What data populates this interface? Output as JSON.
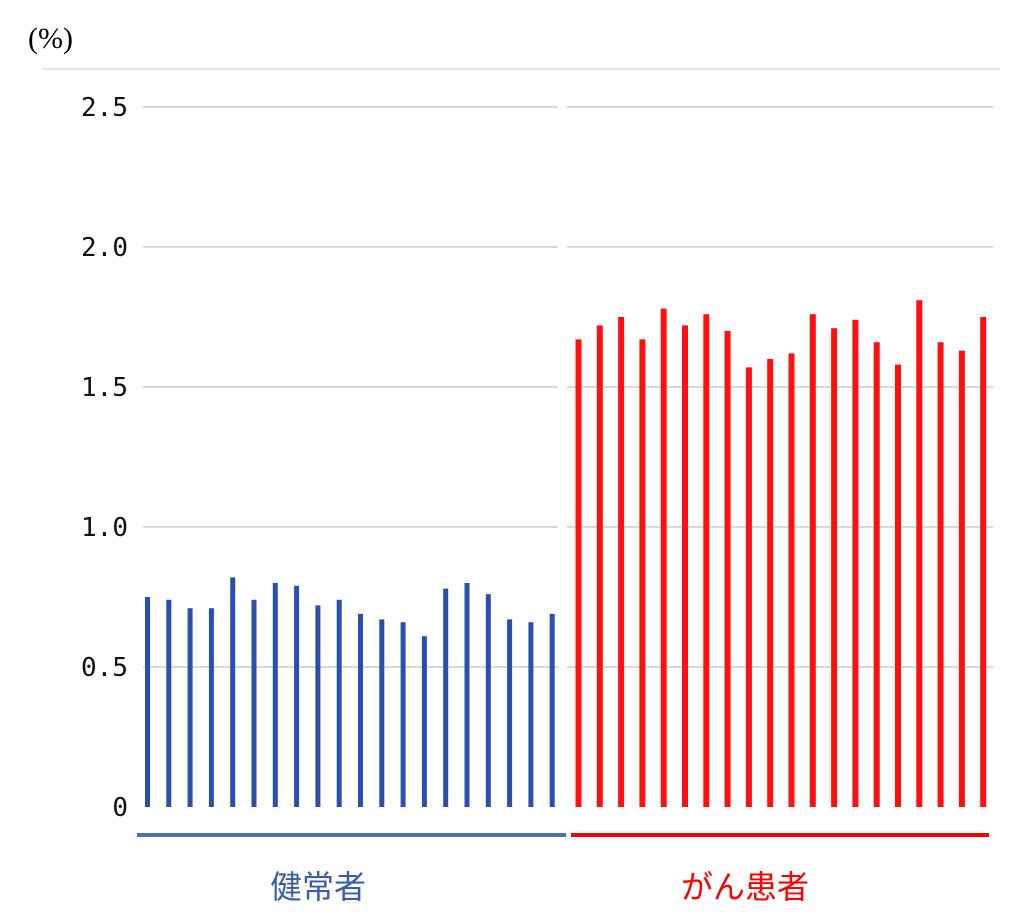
{
  "chart_data": {
    "type": "bar",
    "unit_label": "(%)",
    "title": "",
    "xlabel": "",
    "ylabel": "",
    "ylim": [
      0,
      2.5
    ],
    "yticks": [
      {
        "value": 0,
        "label": "0"
      },
      {
        "value": 0.5,
        "label": "0.5"
      },
      {
        "value": 1.0,
        "label": "1.0"
      },
      {
        "value": 1.5,
        "label": "1.5"
      },
      {
        "value": 2.0,
        "label": "2.0"
      },
      {
        "value": 2.5,
        "label": "2.5"
      }
    ],
    "grid": true,
    "legend": "none",
    "series": [
      {
        "name": "健常者",
        "color": "#2a4fb0",
        "underline_color": "#4a6fc4",
        "values": [
          0.75,
          0.74,
          0.71,
          0.71,
          0.82,
          0.74,
          0.8,
          0.79,
          0.72,
          0.74,
          0.69,
          0.67,
          0.66,
          0.61,
          0.78,
          0.8,
          0.76,
          0.67,
          0.66,
          0.69
        ]
      },
      {
        "name": "がん患者",
        "color": "#ff1010",
        "underline_color": "#ff0000",
        "values": [
          1.67,
          1.72,
          1.75,
          1.67,
          1.78,
          1.72,
          1.76,
          1.7,
          1.57,
          1.6,
          1.62,
          1.76,
          1.71,
          1.74,
          1.66,
          1.58,
          1.81,
          1.66,
          1.63,
          1.75
        ]
      }
    ]
  }
}
